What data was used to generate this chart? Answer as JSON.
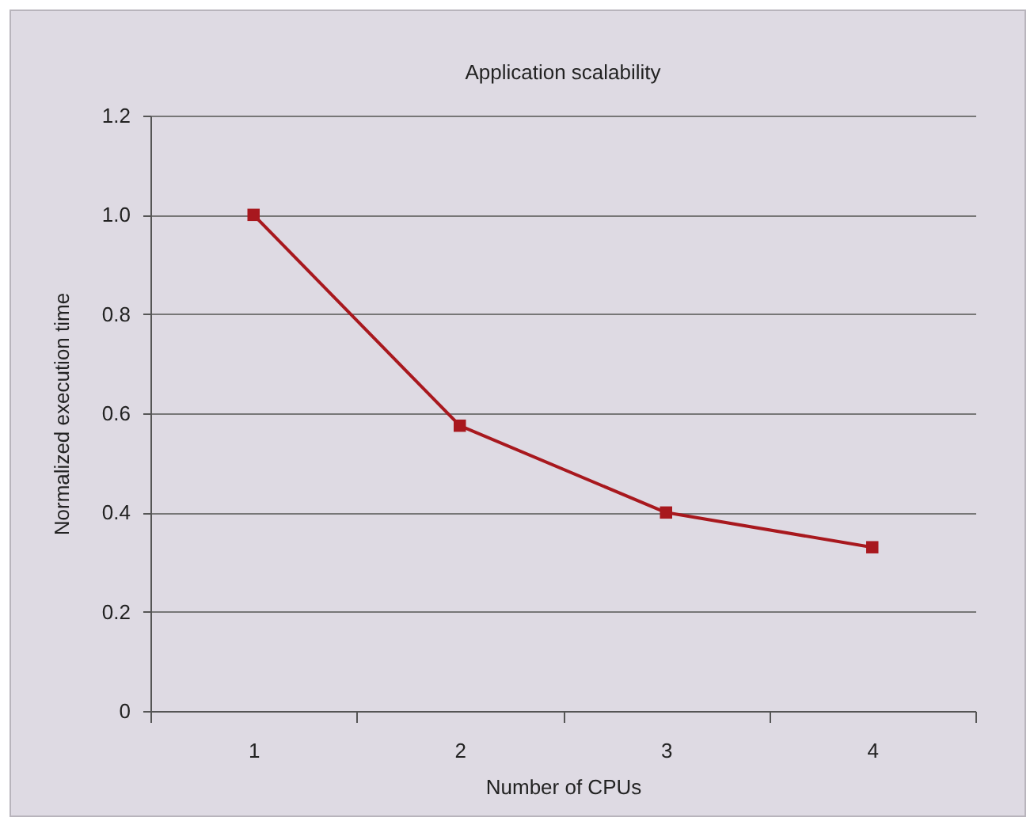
{
  "chart_data": {
    "type": "line",
    "title": "Application scalability",
    "xlabel": "Number of CPUs",
    "ylabel": "Normalized execution time",
    "categories": [
      "1",
      "2",
      "3",
      "4"
    ],
    "series": [
      {
        "color": "#a8181e",
        "values": [
          1.0,
          0.575,
          0.4,
          0.33
        ]
      }
    ],
    "ylim": [
      0,
      1.2
    ],
    "yticks": [
      0,
      0.2,
      0.4,
      0.6,
      0.8,
      {
        "value": 1,
        "label": "1.0"
      },
      1.2
    ],
    "grid": "y",
    "marker": "square",
    "line_style": "solid",
    "legend": false
  }
}
